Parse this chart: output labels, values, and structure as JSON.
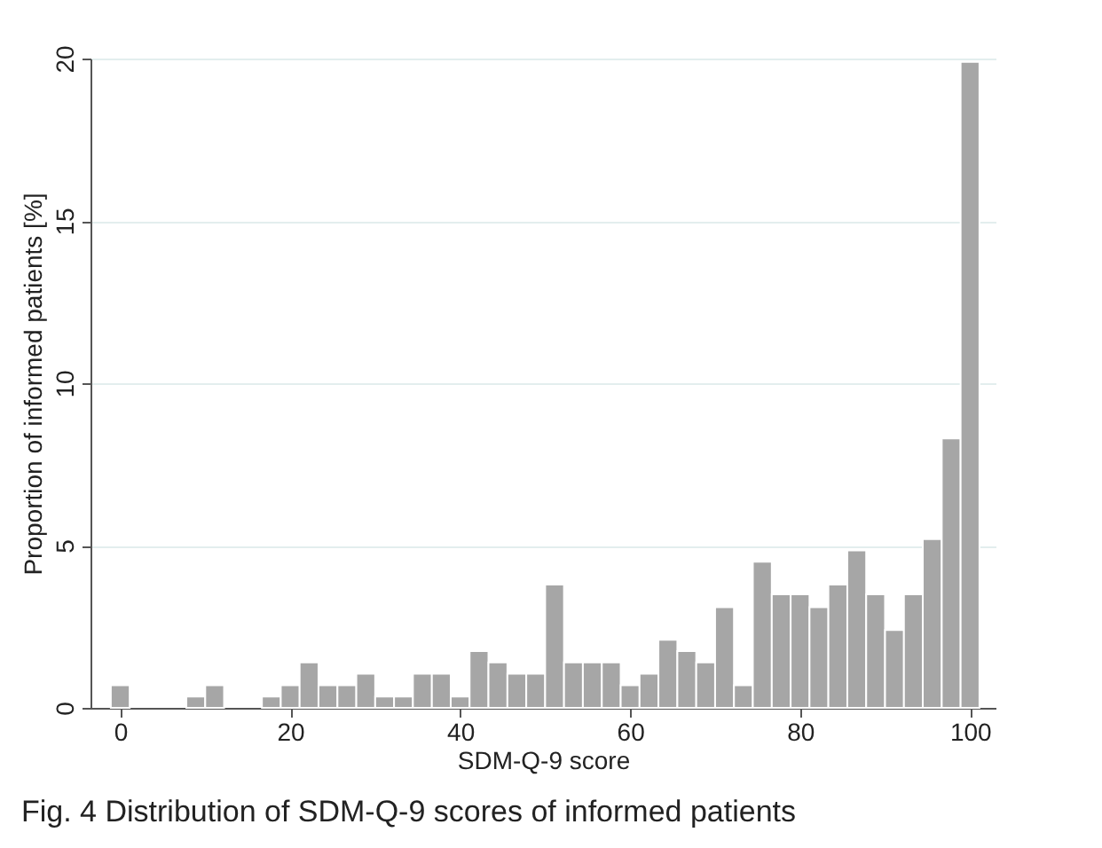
{
  "chart_data": {
    "type": "histogram",
    "xlabel": "SDM-Q-9 score",
    "ylabel": "Proportion of informed patients [%]",
    "bins": [
      -1.11,
      1.11,
      3.33,
      5.56,
      7.78,
      10.0,
      12.22,
      14.44,
      16.67,
      18.89,
      21.11,
      23.33,
      25.56,
      27.78,
      30.0,
      32.22,
      34.44,
      36.67,
      38.89,
      41.11,
      43.33,
      45.56,
      47.78,
      50.0,
      52.22,
      54.44,
      56.67,
      58.89,
      61.11,
      63.33,
      65.56,
      67.78,
      70.0,
      72.22,
      74.44,
      76.67,
      78.89,
      81.11,
      83.33,
      85.56,
      87.78,
      90.0,
      92.22,
      94.44,
      96.67,
      98.89,
      101.11
    ],
    "values": [
      0.7,
      0,
      0,
      0,
      0.35,
      0.7,
      0,
      0,
      0.35,
      0.7,
      1.4,
      0.7,
      0.7,
      1.05,
      0.35,
      0.35,
      1.05,
      1.05,
      0.35,
      1.75,
      1.4,
      1.05,
      1.05,
      3.8,
      1.4,
      1.4,
      1.4,
      0.7,
      1.05,
      2.1,
      1.75,
      1.4,
      3.1,
      0.7,
      4.5,
      3.5,
      3.5,
      3.1,
      3.8,
      4.85,
      3.5,
      2.4,
      3.5,
      5.2,
      8.3,
      19.9
    ],
    "color": "#a6a6a6",
    "xlim": [
      -3.5,
      103
    ],
    "ylim": [
      0,
      20
    ],
    "xticks": [
      0,
      20,
      40,
      60,
      80,
      100
    ],
    "yticks": [
      0,
      5,
      10,
      15,
      20
    ],
    "grid": "y",
    "annotations": [
      "Fig. 4 Distribution of SDM-Q-9 scores of informed patients"
    ]
  }
}
